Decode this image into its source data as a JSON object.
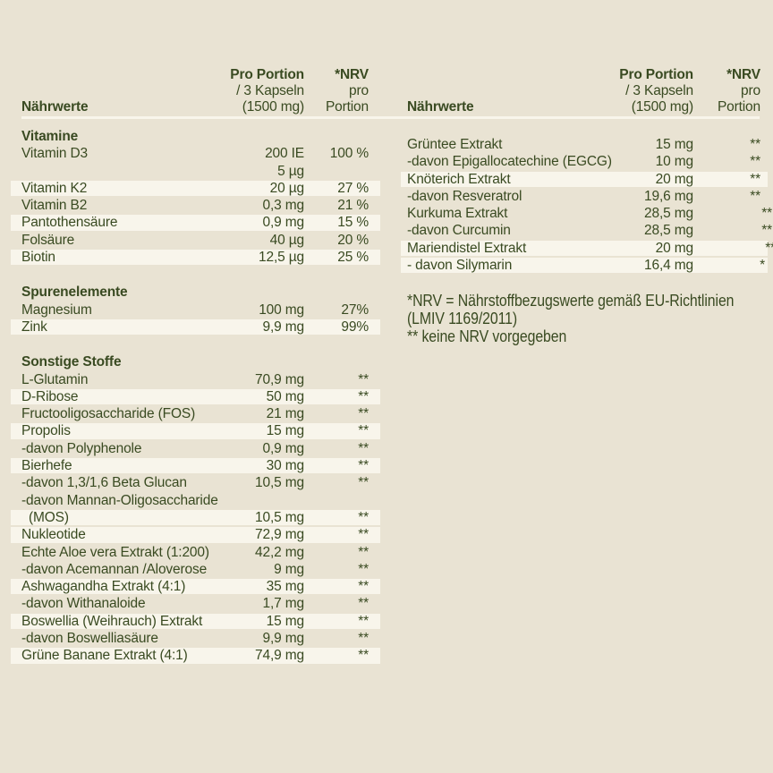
{
  "theme": {
    "background": "#e9e3d3",
    "stripe": "#f8f5eb",
    "rule": "#f8f5eb",
    "text": "#394a21"
  },
  "tables": {
    "left": {
      "header": {
        "label": "Nährwerte",
        "col_portion": [
          "Pro Portion",
          "/ 3 Kapseln",
          "(1500 mg)"
        ],
        "col_nrv": [
          "*NRV",
          "pro",
          "Portion"
        ]
      },
      "sections": [
        {
          "heading": "Vitamine",
          "rows": [
            {
              "name": "Vitamin D3",
              "value": "200 IE",
              "nrv": "100 %",
              "stripe": false
            },
            {
              "name": "",
              "value": "5 µg",
              "nrv": "",
              "stripe": false
            },
            {
              "name": "Vitamin K2",
              "value": "20 µg",
              "nrv": "27 %",
              "stripe": true
            },
            {
              "name": "Vitamin B2",
              "value": "0,3 mg",
              "nrv": "21 %",
              "stripe": false
            },
            {
              "name": "Pantothensäure",
              "value": "0,9 mg",
              "nrv": "15 %",
              "stripe": true
            },
            {
              "name": "Folsäure",
              "value": "40 µg",
              "nrv": "20 %",
              "stripe": false
            },
            {
              "name": "Biotin",
              "value": "12,5 µg",
              "nrv": "25 %",
              "stripe": true
            }
          ]
        },
        {
          "heading": "Spurenelemente",
          "rows": [
            {
              "name": "Magnesium",
              "value": "100 mg",
              "nrv": "27%",
              "stripe": false
            },
            {
              "name": "Zink",
              "value": "9,9 mg",
              "nrv": "99%",
              "stripe": true
            }
          ]
        },
        {
          "heading": "Sonstige Stoffe",
          "rows": [
            {
              "name": "L-Glutamin",
              "value": "70,9 mg",
              "nrv": "**",
              "stripe": false
            },
            {
              "name": "D-Ribose",
              "value": "50 mg",
              "nrv": "**",
              "stripe": true
            },
            {
              "name": "Fructooligosaccharide (FOS)",
              "value": "21 mg",
              "nrv": "**",
              "stripe": false
            },
            {
              "name": "Propolis",
              "value": "15 mg",
              "nrv": "**",
              "stripe": true
            },
            {
              "name": "-davon Polyphenole",
              "value": "0,9 mg",
              "nrv": "**",
              "stripe": false
            },
            {
              "name": "Bierhefe",
              "value": "30 mg",
              "nrv": "**",
              "stripe": true
            },
            {
              "name": "-davon 1,3/1,6 Beta Glucan",
              "value": "10,5 mg",
              "nrv": "**",
              "stripe": false
            },
            {
              "name": "-davon Mannan-Oligosaccharide",
              "value": "",
              "nrv": "",
              "stripe": false
            },
            {
              "name": "(MOS)",
              "value": "10,5 mg",
              "nrv": "**",
              "stripe": true,
              "indent": true
            },
            {
              "name": "Nukleotide",
              "value": "72,9 mg",
              "nrv": "**",
              "stripe": true
            },
            {
              "name": "Echte Aloe vera Extrakt (1:200)",
              "value": "42,2 mg",
              "nrv": "**",
              "stripe": false
            },
            {
              "name": "-davon Acemannan /Aloverose",
              "value": "9 mg",
              "nrv": "**",
              "stripe": false
            },
            {
              "name": "Ashwagandha Extrakt (4:1)",
              "value": "35 mg",
              "nrv": "**",
              "stripe": true
            },
            {
              "name": "-davon Withanaloide",
              "value": "1,7 mg",
              "nrv": "**",
              "stripe": false
            },
            {
              "name": "Boswellia (Weihrauch) Extrakt",
              "value": "15 mg",
              "nrv": "**",
              "stripe": true
            },
            {
              "name": "-davon Boswelliasäure",
              "value": "9,9 mg",
              "nrv": "**",
              "stripe": false
            },
            {
              "name": "Grüne Banane Extrakt (4:1)",
              "value": "74,9 mg",
              "nrv": "**",
              "stripe": true
            }
          ]
        }
      ]
    },
    "right": {
      "header": {
        "label": "Nährwerte",
        "col_portion": [
          "Pro Portion",
          "/ 3 Kapseln",
          "(1500 mg)"
        ],
        "col_nrv": [
          "*NRV",
          "pro",
          "Portion"
        ]
      },
      "sections": [
        {
          "heading": "",
          "rows": [
            {
              "name": "Grüntee Extrakt",
              "value": "15 mg",
              "nrv": "**",
              "stripe": false
            },
            {
              "name": "-davon Epigallocatechine (EGCG)",
              "value": "10 mg",
              "nrv": "**",
              "stripe": false
            },
            {
              "name": "Knöterich Extrakt",
              "value": "20 mg",
              "nrv": "**",
              "stripe": true
            },
            {
              "name": "-davon Resveratrol",
              "value": "19,6 mg",
              "nrv": "**",
              "stripe": false
            },
            {
              "name": "Kurkuma Extrakt",
              "value": "28,5 mg",
              "nrv": "**",
              "stripe": false
            },
            {
              "name": "-davon Curcumin",
              "value": "28,5 mg",
              "nrv": "**",
              "stripe": false
            },
            {
              "name": "Mariendistel Extrakt",
              "value": "20 mg",
              "nrv": "**",
              "stripe": true
            },
            {
              "name": "- davon Silymarin",
              "value": "16,4 mg",
              "nrv": "*",
              "stripe": true
            }
          ]
        }
      ],
      "footnotes": [
        "*NRV = Nährstoffbezugswerte gemäß EU-Richtlinien",
        "(LMIV 1169/2011)",
        "** keine NRV vorgegeben"
      ]
    }
  }
}
